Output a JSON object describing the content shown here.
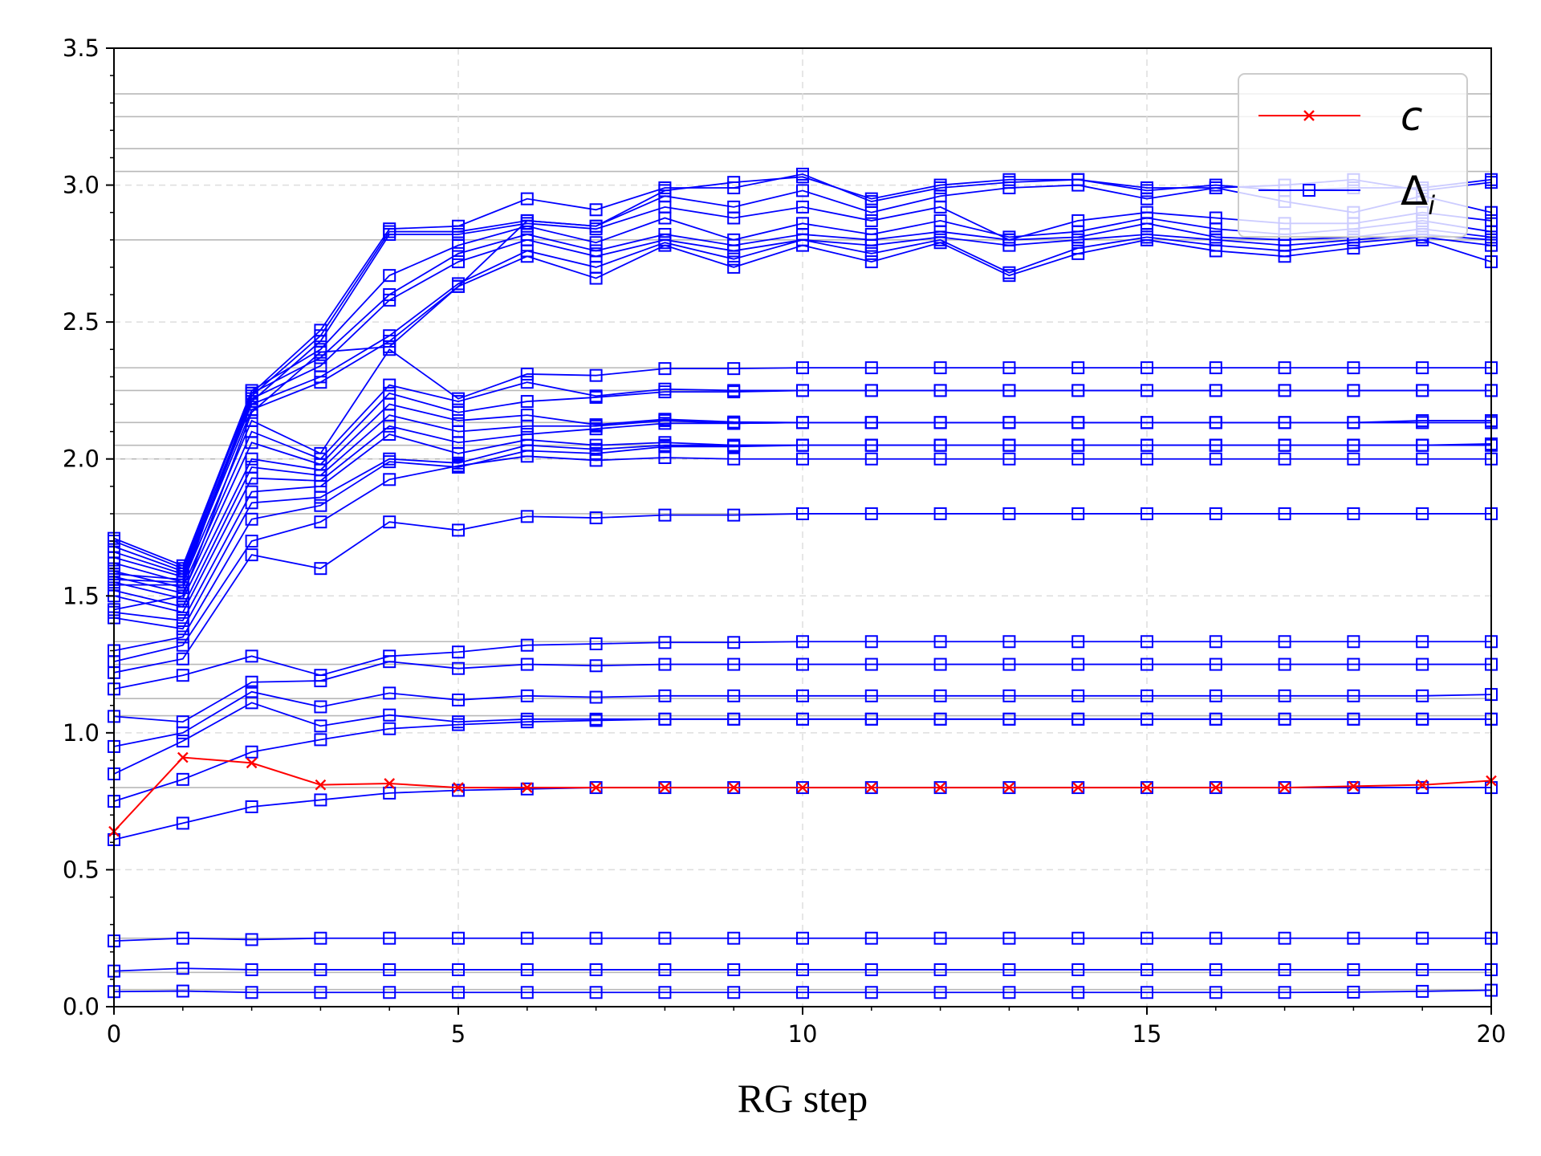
{
  "chart_data": {
    "type": "line",
    "title": "",
    "xlabel": "RG step",
    "ylabel": "",
    "xlim": [
      0,
      20
    ],
    "ylim": [
      0,
      3.5
    ],
    "xticks": [
      0,
      5,
      10,
      15,
      20
    ],
    "xtick_labels": [
      "0",
      "5",
      "10",
      "15",
      "20"
    ],
    "yticks": [
      0,
      0.5,
      1,
      1.5,
      2,
      2.5,
      3,
      3.5
    ],
    "ytick_labels": [
      "0.0",
      "0.5",
      "1.0",
      "1.5",
      "2.0",
      "2.5",
      "3.0",
      "3.5"
    ],
    "grid": "dashed",
    "legend": "top-right",
    "reference_lines": [
      0.0625,
      0.125,
      0.25,
      0.8,
      1.0625,
      1.125,
      1.25,
      1.333,
      1.8,
      2.0,
      2.05,
      2.133,
      2.25,
      2.333,
      2.8,
      3.05,
      3.133,
      3.25,
      3.333
    ],
    "series": [
      {
        "name": "c",
        "color": "#ff0000",
        "marker": "x",
        "y": [
          0.64,
          0.91,
          0.89,
          0.81,
          0.815,
          0.8,
          0.8,
          0.8,
          0.8,
          0.8,
          0.8,
          0.8,
          0.8,
          0.8,
          0.8,
          0.8,
          0.8,
          0.8,
          0.805,
          0.81,
          0.825
        ]
      },
      {
        "name": "Δ",
        "sub": "i",
        "color": "#0000ff",
        "marker": "square",
        "lines": [
          [
            0.055,
            0.057,
            0.052,
            0.052,
            0.052,
            0.052,
            0.052,
            0.052,
            0.052,
            0.052,
            0.052,
            0.052,
            0.052,
            0.052,
            0.052,
            0.052,
            0.052,
            0.052,
            0.053,
            0.056,
            0.06
          ],
          [
            0.13,
            0.14,
            0.135,
            0.135,
            0.135,
            0.135,
            0.135,
            0.135,
            0.135,
            0.135,
            0.135,
            0.135,
            0.135,
            0.135,
            0.135,
            0.135,
            0.135,
            0.135,
            0.135,
            0.135,
            0.135
          ],
          [
            0.24,
            0.25,
            0.245,
            0.25,
            0.25,
            0.25,
            0.25,
            0.25,
            0.25,
            0.25,
            0.25,
            0.25,
            0.25,
            0.25,
            0.25,
            0.25,
            0.25,
            0.25,
            0.25,
            0.25,
            0.25
          ],
          [
            0.61,
            0.67,
            0.73,
            0.755,
            0.78,
            0.79,
            0.795,
            0.8,
            0.8,
            0.8,
            0.8,
            0.8,
            0.8,
            0.8,
            0.8,
            0.8,
            0.8,
            0.8,
            0.8,
            0.8,
            0.8
          ],
          [
            0.75,
            0.83,
            0.93,
            0.975,
            1.015,
            1.03,
            1.04,
            1.045,
            1.05,
            1.05,
            1.05,
            1.05,
            1.05,
            1.05,
            1.05,
            1.05,
            1.05,
            1.05,
            1.05,
            1.05,
            1.05
          ],
          [
            0.85,
            0.97,
            1.11,
            1.025,
            1.065,
            1.04,
            1.05,
            1.05,
            1.05,
            1.05,
            1.05,
            1.05,
            1.05,
            1.05,
            1.05,
            1.05,
            1.05,
            1.05,
            1.05,
            1.05,
            1.05
          ],
          [
            0.95,
            1.0,
            1.15,
            1.095,
            1.145,
            1.12,
            1.135,
            1.13,
            1.135,
            1.135,
            1.135,
            1.135,
            1.135,
            1.135,
            1.135,
            1.135,
            1.135,
            1.135,
            1.135,
            1.135,
            1.14
          ],
          [
            1.06,
            1.04,
            1.185,
            1.19,
            1.26,
            1.235,
            1.25,
            1.245,
            1.25,
            1.25,
            1.25,
            1.25,
            1.25,
            1.25,
            1.25,
            1.25,
            1.25,
            1.25,
            1.25,
            1.25,
            1.25
          ],
          [
            1.16,
            1.21,
            1.28,
            1.21,
            1.28,
            1.295,
            1.32,
            1.325,
            1.33,
            1.33,
            1.333,
            1.333,
            1.333,
            1.333,
            1.333,
            1.333,
            1.333,
            1.333,
            1.333,
            1.333,
            1.333
          ],
          [
            1.22,
            1.27,
            1.65,
            1.6,
            1.77,
            1.74,
            1.79,
            1.785,
            1.795,
            1.795,
            1.8,
            1.8,
            1.8,
            1.8,
            1.8,
            1.8,
            1.8,
            1.8,
            1.8,
            1.8,
            1.8
          ],
          [
            1.26,
            1.32,
            1.7,
            1.77,
            1.925,
            1.975,
            2.01,
            1.995,
            2.005,
            2.0,
            2.0,
            2.0,
            2.0,
            2.0,
            2.0,
            2.0,
            2.0,
            2.0,
            2.0,
            2.0,
            2.0
          ],
          [
            1.3,
            1.35,
            1.78,
            1.83,
            1.99,
            1.97,
            2.03,
            2.02,
            2.045,
            2.045,
            2.05,
            2.05,
            2.05,
            2.05,
            2.05,
            2.05,
            2.05,
            2.05,
            2.05,
            2.05,
            2.05
          ],
          [
            1.42,
            1.38,
            1.84,
            1.86,
            2.0,
            1.985,
            2.05,
            2.035,
            2.05,
            2.05,
            2.05,
            2.05,
            2.05,
            2.05,
            2.05,
            2.05,
            2.05,
            2.05,
            2.05,
            2.05,
            2.05
          ],
          [
            1.44,
            1.41,
            1.88,
            1.9,
            2.09,
            2.02,
            2.07,
            2.05,
            2.06,
            2.05,
            2.05,
            2.05,
            2.05,
            2.05,
            2.05,
            2.05,
            2.05,
            2.05,
            2.05,
            2.05,
            2.055
          ],
          [
            1.5,
            1.44,
            1.93,
            1.92,
            2.12,
            2.06,
            2.09,
            2.11,
            2.13,
            2.13,
            2.133,
            2.133,
            2.133,
            2.133,
            2.133,
            2.133,
            2.133,
            2.133,
            2.133,
            2.133,
            2.133
          ],
          [
            1.52,
            1.46,
            1.97,
            1.94,
            2.16,
            2.1,
            2.12,
            2.12,
            2.14,
            2.13,
            2.133,
            2.133,
            2.133,
            2.133,
            2.133,
            2.133,
            2.133,
            2.133,
            2.133,
            2.14,
            2.14
          ],
          [
            1.55,
            1.49,
            2.0,
            1.96,
            2.2,
            2.14,
            2.16,
            2.125,
            2.145,
            2.135,
            2.133,
            2.133,
            2.133,
            2.133,
            2.133,
            2.133,
            2.133,
            2.133,
            2.133,
            2.133,
            2.133
          ],
          [
            1.57,
            1.51,
            2.06,
            1.98,
            2.24,
            2.17,
            2.21,
            2.225,
            2.245,
            2.245,
            2.25,
            2.25,
            2.25,
            2.25,
            2.25,
            2.25,
            2.25,
            2.25,
            2.25,
            2.25,
            2.25
          ],
          [
            1.59,
            1.53,
            2.1,
            2.0,
            2.27,
            2.21,
            2.28,
            2.23,
            2.255,
            2.25,
            2.25,
            2.25,
            2.25,
            2.25,
            2.25,
            2.25,
            2.25,
            2.25,
            2.25,
            2.25,
            2.25
          ],
          [
            1.62,
            1.55,
            2.14,
            2.02,
            2.4,
            2.22,
            2.31,
            2.305,
            2.33,
            2.33,
            2.333,
            2.333,
            2.333,
            2.333,
            2.333,
            2.333,
            2.333,
            2.333,
            2.333,
            2.333,
            2.333
          ],
          [
            1.64,
            1.57,
            2.18,
            2.28,
            2.43,
            2.63,
            2.74,
            2.66,
            2.78,
            2.7,
            2.78,
            2.72,
            2.79,
            2.67,
            2.75,
            2.8,
            2.76,
            2.74,
            2.77,
            2.8,
            2.72
          ],
          [
            1.66,
            1.58,
            2.2,
            2.3,
            2.45,
            2.64,
            2.76,
            2.7,
            2.79,
            2.73,
            2.8,
            2.75,
            2.8,
            2.68,
            2.77,
            2.81,
            2.78,
            2.76,
            2.79,
            2.81,
            2.78
          ],
          [
            1.68,
            1.59,
            2.22,
            2.34,
            2.58,
            2.72,
            2.8,
            2.74,
            2.8,
            2.76,
            2.8,
            2.78,
            2.81,
            2.78,
            2.8,
            2.82,
            2.8,
            2.78,
            2.8,
            2.82,
            2.8
          ],
          [
            1.7,
            1.6,
            2.24,
            2.37,
            2.6,
            2.75,
            2.82,
            2.76,
            2.82,
            2.78,
            2.82,
            2.8,
            2.83,
            2.8,
            2.81,
            2.86,
            2.81,
            2.8,
            2.81,
            2.84,
            2.81
          ],
          [
            1.71,
            1.61,
            2.25,
            2.4,
            2.67,
            2.78,
            2.85,
            2.79,
            2.88,
            2.8,
            2.86,
            2.82,
            2.87,
            2.81,
            2.83,
            2.88,
            2.84,
            2.82,
            2.84,
            2.87,
            2.83
          ],
          [
            1.58,
            1.56,
            2.21,
            2.43,
            2.82,
            2.82,
            2.86,
            2.84,
            2.92,
            2.88,
            2.92,
            2.87,
            2.92,
            2.8,
            2.87,
            2.9,
            2.88,
            2.86,
            2.86,
            2.9,
            2.87
          ],
          [
            1.56,
            1.55,
            2.23,
            2.45,
            2.83,
            2.83,
            2.87,
            2.85,
            2.96,
            2.92,
            2.98,
            2.9,
            2.96,
            2.99,
            3.0,
            2.95,
            2.99,
            2.94,
            2.9,
            2.96,
            2.9
          ],
          [
            1.54,
            1.54,
            2.24,
            2.47,
            2.84,
            2.85,
            2.95,
            2.91,
            2.99,
            2.99,
            3.04,
            2.94,
            2.99,
            3.01,
            3.02,
            2.98,
            3.0,
            2.98,
            2.99,
            2.99,
            3.02
          ],
          [
            1.45,
            1.5,
            2.17,
            2.39,
            2.41,
            2.63,
            2.87,
            2.85,
            2.98,
            3.01,
            3.03,
            2.95,
            3.0,
            3.02,
            3.02,
            2.99,
            2.99,
            3.0,
            3.02,
            2.98,
            3.01
          ]
        ]
      }
    ]
  }
}
